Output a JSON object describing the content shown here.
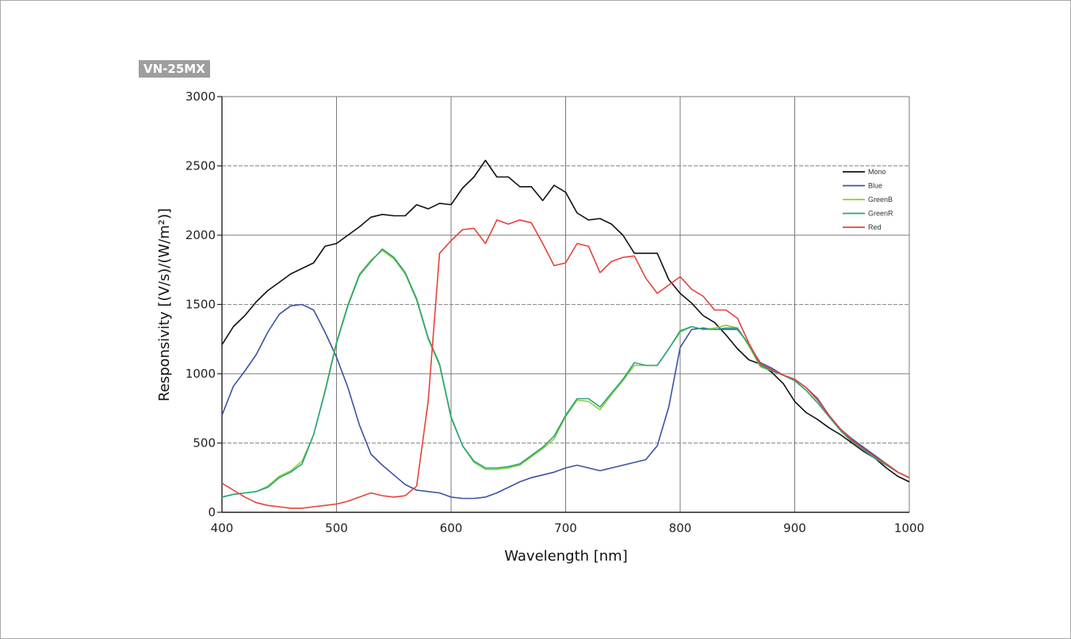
{
  "model_label": "VN-25MX",
  "chart_data": {
    "type": "line",
    "xlabel": "Wavelength [nm]",
    "ylabel": "Responsivity [(V/s)/(W/m²)]",
    "xlim": [
      400,
      1000
    ],
    "ylim": [
      0,
      3000
    ],
    "xticks": [
      400,
      500,
      600,
      700,
      800,
      900,
      1000
    ],
    "yticks": [
      0,
      500,
      1000,
      1500,
      2000,
      2500,
      3000
    ],
    "grid": true,
    "legend_position": "right",
    "x": [
      400,
      410,
      420,
      430,
      440,
      450,
      460,
      470,
      480,
      490,
      500,
      510,
      520,
      530,
      540,
      550,
      560,
      570,
      580,
      590,
      600,
      610,
      620,
      630,
      640,
      650,
      660,
      670,
      680,
      690,
      700,
      710,
      720,
      730,
      740,
      750,
      760,
      770,
      780,
      790,
      800,
      810,
      820,
      830,
      840,
      850,
      860,
      870,
      880,
      890,
      900,
      910,
      920,
      930,
      940,
      950,
      960,
      970,
      980,
      990,
      1000
    ],
    "series": [
      {
        "name": "Mono",
        "color": "#111111",
        "values": [
          1210,
          1340,
          1420,
          1520,
          1600,
          1660,
          1720,
          1760,
          1800,
          1920,
          1940,
          2000,
          2060,
          2130,
          2150,
          2140,
          2140,
          2220,
          2190,
          2230,
          2220,
          2340,
          2420,
          2540,
          2420,
          2420,
          2350,
          2350,
          2250,
          2360,
          2310,
          2160,
          2110,
          2120,
          2080,
          2000,
          1870,
          1870,
          1870,
          1680,
          1580,
          1510,
          1420,
          1370,
          1280,
          1180,
          1100,
          1070,
          1010,
          930,
          800,
          720,
          670,
          610,
          560,
          500,
          440,
          390,
          320,
          260,
          220
        ]
      },
      {
        "name": "Blue",
        "color": "#3a52a6",
        "values": [
          700,
          910,
          1020,
          1140,
          1300,
          1430,
          1490,
          1500,
          1460,
          1300,
          1120,
          900,
          630,
          420,
          340,
          270,
          200,
          160,
          150,
          140,
          110,
          100,
          100,
          110,
          140,
          180,
          220,
          250,
          270,
          290,
          320,
          340,
          320,
          300,
          320,
          340,
          360,
          380,
          480,
          760,
          1190,
          1320,
          1330,
          1320,
          1320,
          1320,
          1210,
          1080,
          1040,
          990,
          960,
          900,
          820,
          700,
          600,
          530,
          470,
          410,
          350,
          290,
          250
        ]
      },
      {
        "name": "GreenB",
        "color": "#8ccf3a",
        "values": [
          110,
          130,
          140,
          150,
          190,
          260,
          300,
          370,
          560,
          880,
          1230,
          1500,
          1720,
          1820,
          1890,
          1830,
          1720,
          1530,
          1250,
          1060,
          680,
          480,
          360,
          310,
          310,
          320,
          340,
          400,
          460,
          530,
          690,
          810,
          800,
          740,
          850,
          950,
          1060,
          1060,
          1060,
          1180,
          1300,
          1340,
          1320,
          1330,
          1350,
          1330,
          1200,
          1050,
          1020,
          990,
          950,
          880,
          790,
          690,
          590,
          510,
          450,
          390,
          340,
          290,
          250
        ]
      },
      {
        "name": "GreenR",
        "color": "#2aa37e",
        "values": [
          110,
          130,
          140,
          150,
          180,
          250,
          290,
          350,
          560,
          870,
          1220,
          1490,
          1710,
          1810,
          1900,
          1840,
          1730,
          1540,
          1260,
          1070,
          690,
          480,
          370,
          320,
          320,
          330,
          350,
          410,
          470,
          550,
          700,
          820,
          820,
          760,
          860,
          960,
          1080,
          1060,
          1060,
          1180,
          1310,
          1340,
          1320,
          1320,
          1330,
          1330,
          1210,
          1060,
          1020,
          990,
          950,
          880,
          790,
          690,
          590,
          510,
          450,
          390,
          340,
          290,
          250
        ]
      },
      {
        "name": "Red",
        "color": "#e8403a",
        "values": [
          210,
          160,
          110,
          70,
          50,
          40,
          30,
          30,
          40,
          50,
          60,
          80,
          110,
          140,
          120,
          110,
          120,
          190,
          800,
          1870,
          1960,
          2040,
          2050,
          1940,
          2110,
          2080,
          2110,
          2090,
          1940,
          1780,
          1800,
          1940,
          1920,
          1730,
          1810,
          1840,
          1850,
          1690,
          1580,
          1640,
          1700,
          1610,
          1560,
          1460,
          1460,
          1400,
          1220,
          1070,
          1030,
          990,
          960,
          900,
          810,
          700,
          600,
          520,
          460,
          400,
          350,
          290,
          250
        ]
      }
    ]
  }
}
